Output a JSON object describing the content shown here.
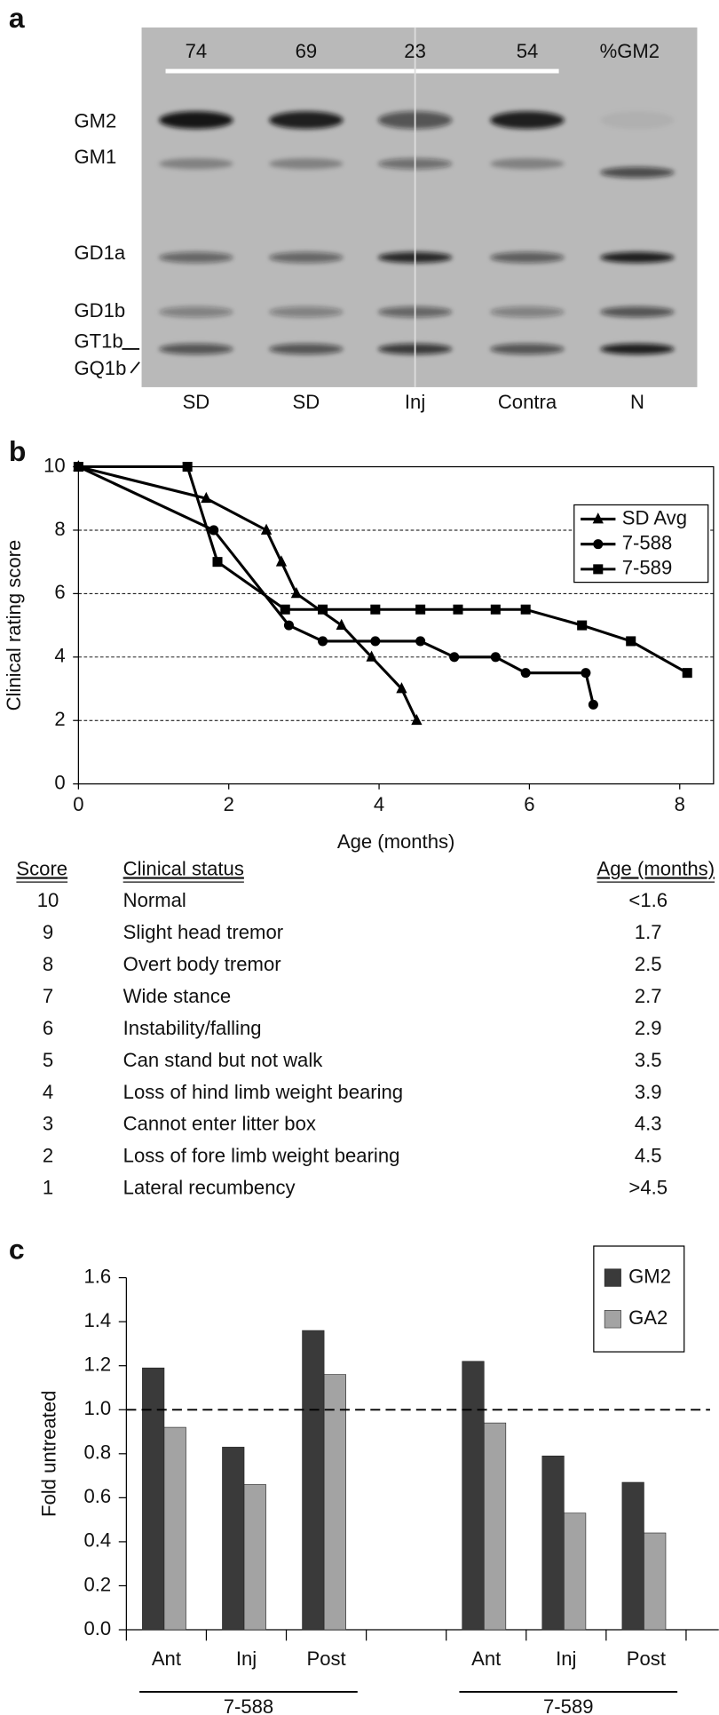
{
  "panel_a": {
    "letter": "a",
    "header": "%GM2",
    "percent_gm2": [
      74,
      69,
      23,
      54
    ],
    "bands": [
      "GM2",
      "GM1",
      "GD1a",
      "GD1b",
      "GT1b",
      "GQ1b"
    ],
    "lanes": [
      "SD",
      "SD",
      "Inj",
      "Contra",
      "N"
    ]
  },
  "chart_data": [
    {
      "type": "line",
      "letter": "b",
      "y_label": "Clinical rating score",
      "x_label": "Age (months)",
      "xlim": [
        0,
        8.45
      ],
      "ylim": [
        0,
        10
      ],
      "xticks": [
        0,
        2,
        4,
        6,
        8
      ],
      "yticks": [
        0,
        2,
        4,
        6,
        8,
        10
      ],
      "grid": true,
      "legend": "upper right",
      "series": [
        {
          "name": "SD Avg",
          "color": "#000000",
          "marker": "triangle",
          "x": [
            0,
            1.7,
            2.5,
            2.7,
            2.9,
            3.5,
            3.9,
            4.3,
            4.5
          ],
          "values": [
            10,
            9,
            8,
            7,
            6,
            5,
            4,
            3,
            2
          ]
        },
        {
          "name": "7-588",
          "color": "#000000",
          "marker": "circle",
          "x": [
            0,
            1.8,
            2.8,
            3.25,
            3.95,
            4.55,
            5.0,
            5.55,
            5.95,
            6.75,
            6.85
          ],
          "values": [
            10,
            8,
            5,
            4.5,
            4.5,
            4.5,
            4,
            4,
            3.5,
            3.5,
            2.5
          ]
        },
        {
          "name": "7-589",
          "color": "#000000",
          "marker": "square",
          "x": [
            0,
            1.45,
            1.85,
            2.75,
            3.25,
            3.95,
            4.55,
            5.05,
            5.55,
            5.95,
            6.7,
            7.35,
            8.1
          ],
          "values": [
            10,
            10,
            7,
            5.5,
            5.5,
            5.5,
            5.5,
            5.5,
            5.5,
            5.5,
            5,
            4.5,
            3.5
          ]
        }
      ]
    },
    {
      "type": "bar",
      "letter": "c",
      "y_label": "Fold untreated",
      "categories": [
        "Ant",
        "Inj",
        "Post",
        null,
        "Ant",
        "Inj",
        "Post"
      ],
      "group_labels": [
        "7-588",
        "7-589"
      ],
      "ylim": [
        0,
        1.6
      ],
      "yticks": [
        {
          "value": 0,
          "label": "0.0"
        },
        {
          "value": 0.2,
          "label": "0.2"
        },
        {
          "value": 0.4,
          "label": "0.4"
        },
        {
          "value": 0.6,
          "label": "0.6"
        },
        {
          "value": 0.8,
          "label": "0.8"
        },
        {
          "value": 1,
          "label": "1.0"
        },
        {
          "value": 1.2,
          "label": "1.2"
        },
        {
          "value": 1.4,
          "label": "1.4"
        },
        {
          "value": 1.6,
          "label": "1.6"
        }
      ],
      "reference_line": 1,
      "legend": "upper right",
      "series": [
        {
          "name": "GM2",
          "color": "#3a3a3a",
          "values": [
            1.19,
            0.83,
            1.36,
            null,
            1.22,
            0.79,
            0.67
          ]
        },
        {
          "name": "GA2",
          "color": "#a3a3a3",
          "values": [
            0.92,
            0.66,
            1.16,
            null,
            0.94,
            0.53,
            0.44
          ]
        }
      ]
    }
  ],
  "score_table": {
    "headers": [
      "Score",
      "Clinical status",
      "Age (months)"
    ],
    "rows": [
      [
        10,
        "Normal",
        "<1.6"
      ],
      [
        9,
        "Slight head tremor",
        "1.7"
      ],
      [
        8,
        "Overt body tremor",
        "2.5"
      ],
      [
        7,
        "Wide stance",
        "2.7"
      ],
      [
        6,
        "Instability/falling",
        "2.9"
      ],
      [
        5,
        "Can stand but not walk",
        "3.5"
      ],
      [
        4,
        "Loss of hind limb weight bearing",
        "3.9"
      ],
      [
        3,
        "Cannot enter litter box",
        "4.3"
      ],
      [
        2,
        "Loss of fore limb weight bearing",
        "4.5"
      ],
      [
        1,
        "Lateral recumbency",
        ">4.5"
      ]
    ]
  }
}
